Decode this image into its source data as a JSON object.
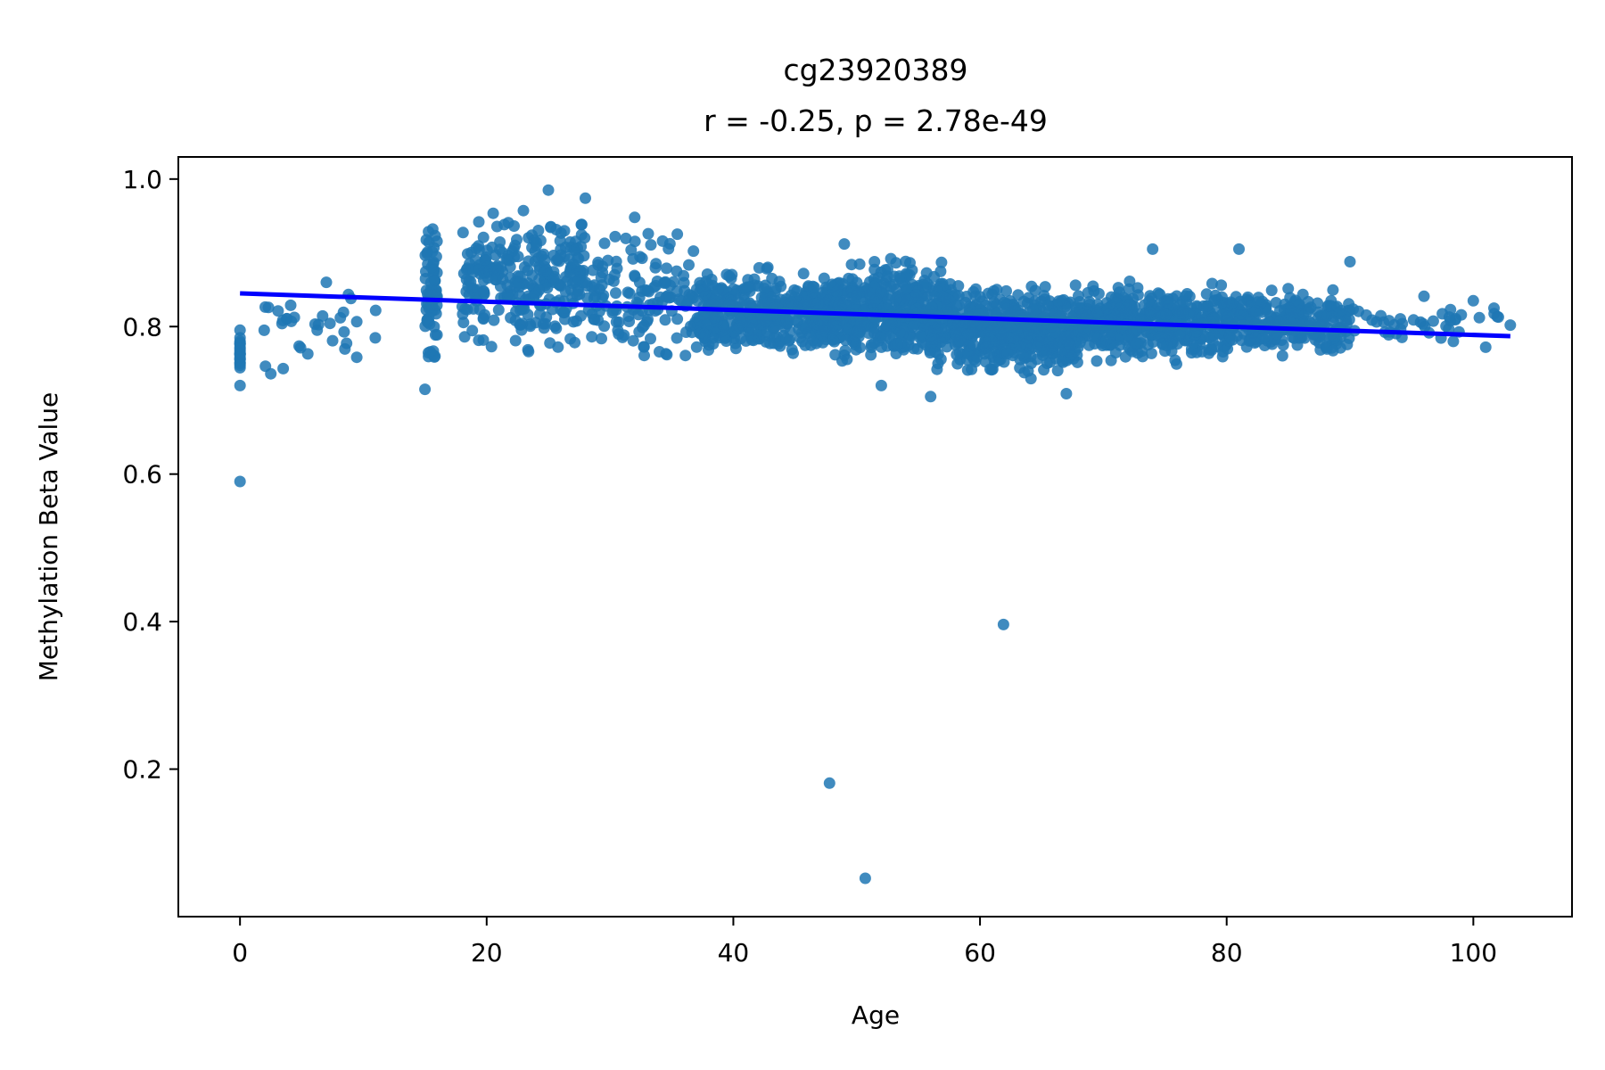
{
  "chart_data": {
    "type": "scatter",
    "title": [
      "cg23920389",
      "r = -0.25, p = 2.78e-49"
    ],
    "xlabel": "Age",
    "ylabel": "Methylation Beta Value",
    "xlim": [
      -5,
      108
    ],
    "ylim": [
      0.0,
      1.03
    ],
    "xticks": [
      0,
      20,
      40,
      60,
      80,
      100
    ],
    "yticks": [
      0.2,
      0.4,
      0.6,
      0.8,
      1.0
    ],
    "xtick_labels": [
      "0",
      "20",
      "40",
      "60",
      "80",
      "100"
    ],
    "ytick_labels": [
      "0.2",
      "0.4",
      "0.6",
      "0.8",
      "1.0"
    ],
    "grid": false,
    "legend": "none",
    "point_color": "#1f77b4",
    "line_color": "#0000ff",
    "regression": {
      "x": [
        0,
        103
      ],
      "y": [
        0.845,
        0.787
      ]
    },
    "clusters": [
      {
        "x": [
          0,
          0
        ],
        "y": [
          0.72,
          0.81
        ],
        "n": 20
      },
      {
        "x": [
          1,
          12
        ],
        "y": [
          0.73,
          0.86
        ],
        "n": 30
      },
      {
        "x": [
          15,
          16
        ],
        "y": [
          0.72,
          0.97
        ],
        "n": 70
      },
      {
        "x": [
          18,
          28
        ],
        "y": [
          0.75,
          0.98
        ],
        "n": 280
      },
      {
        "x": [
          28,
          37
        ],
        "y": [
          0.73,
          0.95
        ],
        "n": 140
      },
      {
        "x": [
          37,
          48
        ],
        "y": [
          0.74,
          0.89
        ],
        "n": 420
      },
      {
        "x": [
          48,
          58
        ],
        "y": [
          0.73,
          0.91
        ],
        "n": 480
      },
      {
        "x": [
          58,
          68
        ],
        "y": [
          0.72,
          0.87
        ],
        "n": 460
      },
      {
        "x": [
          68,
          80
        ],
        "y": [
          0.74,
          0.87
        ],
        "n": 440
      },
      {
        "x": [
          80,
          90
        ],
        "y": [
          0.75,
          0.86
        ],
        "n": 280
      },
      {
        "x": [
          90,
          103
        ],
        "y": [
          0.77,
          0.84
        ],
        "n": 40
      }
    ],
    "points": [
      {
        "x": 0,
        "y": 0.59
      },
      {
        "x": 47.8,
        "y": 0.181
      },
      {
        "x": 50.7,
        "y": 0.052
      },
      {
        "x": 61.9,
        "y": 0.396
      },
      {
        "x": 0,
        "y": 0.72
      },
      {
        "x": 2.5,
        "y": 0.736
      },
      {
        "x": 3.5,
        "y": 0.743
      },
      {
        "x": 7,
        "y": 0.86
      },
      {
        "x": 9,
        "y": 0.838
      },
      {
        "x": 11,
        "y": 0.822
      },
      {
        "x": 15,
        "y": 0.715
      },
      {
        "x": 25,
        "y": 0.985
      },
      {
        "x": 28,
        "y": 0.974
      },
      {
        "x": 32,
        "y": 0.948
      },
      {
        "x": 49,
        "y": 0.912
      },
      {
        "x": 52,
        "y": 0.72
      },
      {
        "x": 56,
        "y": 0.705
      },
      {
        "x": 67,
        "y": 0.709
      },
      {
        "x": 74,
        "y": 0.905
      },
      {
        "x": 81,
        "y": 0.905
      },
      {
        "x": 90,
        "y": 0.888
      },
      {
        "x": 96,
        "y": 0.841
      },
      {
        "x": 98,
        "y": 0.797
      },
      {
        "x": 100,
        "y": 0.835
      },
      {
        "x": 101,
        "y": 0.772
      },
      {
        "x": 103,
        "y": 0.802
      }
    ]
  }
}
